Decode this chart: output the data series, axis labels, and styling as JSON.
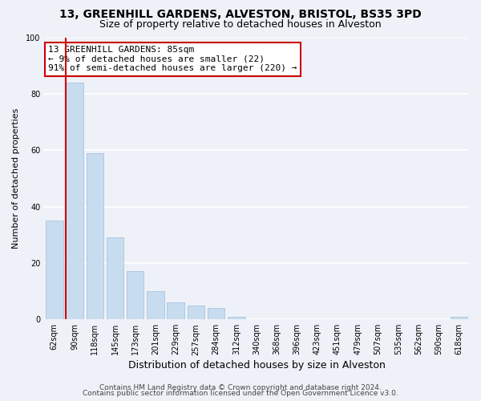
{
  "title": "13, GREENHILL GARDENS, ALVESTON, BRISTOL, BS35 3PD",
  "subtitle": "Size of property relative to detached houses in Alveston",
  "xlabel": "Distribution of detached houses by size in Alveston",
  "ylabel": "Number of detached properties",
  "bar_labels": [
    "62sqm",
    "90sqm",
    "118sqm",
    "145sqm",
    "173sqm",
    "201sqm",
    "229sqm",
    "257sqm",
    "284sqm",
    "312sqm",
    "340sqm",
    "368sqm",
    "396sqm",
    "423sqm",
    "451sqm",
    "479sqm",
    "507sqm",
    "535sqm",
    "562sqm",
    "590sqm",
    "618sqm"
  ],
  "bar_values": [
    35,
    84,
    59,
    29,
    17,
    10,
    6,
    5,
    4,
    1,
    0,
    0,
    0,
    0,
    0,
    0,
    0,
    0,
    0,
    0,
    1
  ],
  "bar_color": "#c8dcf0",
  "bar_edge_color": "#a0bcd8",
  "annotation_title": "13 GREENHILL GARDENS: 85sqm",
  "annotation_line1": "← 9% of detached houses are smaller (22)",
  "annotation_line2": "91% of semi-detached houses are larger (220) →",
  "annotation_box_facecolor": "#ffffff",
  "annotation_box_edgecolor": "#cc0000",
  "vline_color": "#cc0000",
  "ylim": [
    0,
    100
  ],
  "yticks": [
    0,
    20,
    40,
    60,
    80,
    100
  ],
  "footer_line1": "Contains HM Land Registry data © Crown copyright and database right 2024.",
  "footer_line2": "Contains public sector information licensed under the Open Government Licence v3.0.",
  "background_color": "#eef2f8",
  "grid_color": "#ffffff",
  "title_fontsize": 10,
  "subtitle_fontsize": 9,
  "xlabel_fontsize": 9,
  "ylabel_fontsize": 8,
  "tick_fontsize": 7,
  "annotation_fontsize": 8,
  "footer_fontsize": 6.5
}
